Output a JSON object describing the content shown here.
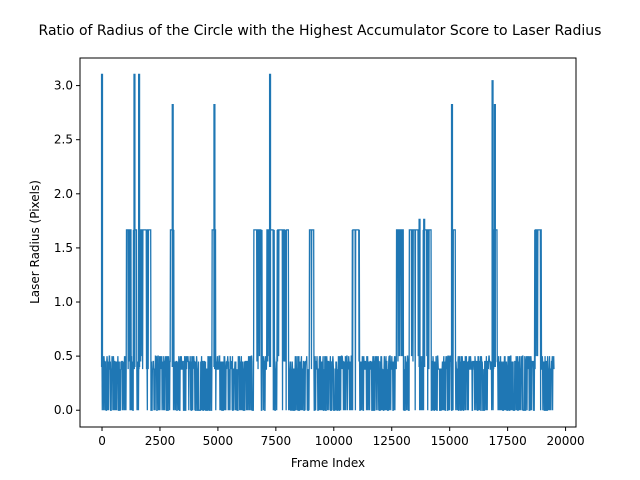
{
  "chart_data": {
    "type": "line",
    "title": "Ratio of Radius of the Circle with the Highest Accumulator Score to Laser Radius",
    "xlabel": "Frame Index",
    "ylabel": "Laser Radius (Pixels)",
    "xlim": [
      -950,
      20450
    ],
    "ylim": [
      -0.155,
      3.255
    ],
    "xticks": [
      0,
      2500,
      5000,
      7500,
      10000,
      12500,
      15000,
      17500,
      20000
    ],
    "xtick_labels": [
      "0",
      "2500",
      "5000",
      "7500",
      "10000",
      "12500",
      "15000",
      "17500",
      "20000"
    ],
    "yticks": [
      0.0,
      0.5,
      1.0,
      1.5,
      2.0,
      2.5,
      3.0
    ],
    "ytick_labels": [
      "0.0",
      "0.5",
      "1.0",
      "1.5",
      "2.0",
      "2.5",
      "3.0"
    ],
    "grid": false,
    "legend": false,
    "color": "#1f77b4",
    "frame_count": 19500,
    "baseline_levels": [
      0.0,
      0.38,
      0.45,
      0.5
    ],
    "plateau_value": 1.667,
    "plateaus": [
      [
        1050,
        1250
      ],
      [
        1350,
        1500
      ],
      [
        1600,
        2100
      ],
      [
        2950,
        3100
      ],
      [
        4750,
        4900
      ],
      [
        6550,
        6900
      ],
      [
        7100,
        7450
      ],
      [
        7550,
        8050
      ],
      [
        8950,
        9150
      ],
      [
        10800,
        11100
      ],
      [
        12700,
        13000
      ],
      [
        13250,
        13700
      ],
      [
        13850,
        14200
      ],
      [
        15150,
        15250
      ],
      [
        16900,
        17050
      ],
      [
        18650,
        18950
      ]
    ],
    "spikes": [
      {
        "x": 0,
        "y": 3.11
      },
      {
        "x": 1400,
        "y": 3.11
      },
      {
        "x": 1600,
        "y": 3.11
      },
      {
        "x": 3050,
        "y": 2.83
      },
      {
        "x": 4850,
        "y": 2.83
      },
      {
        "x": 7250,
        "y": 3.11
      },
      {
        "x": 13700,
        "y": 1.77
      },
      {
        "x": 13900,
        "y": 1.77
      },
      {
        "x": 15100,
        "y": 2.83
      },
      {
        "x": 16850,
        "y": 3.05
      },
      {
        "x": 16950,
        "y": 2.83
      }
    ]
  }
}
